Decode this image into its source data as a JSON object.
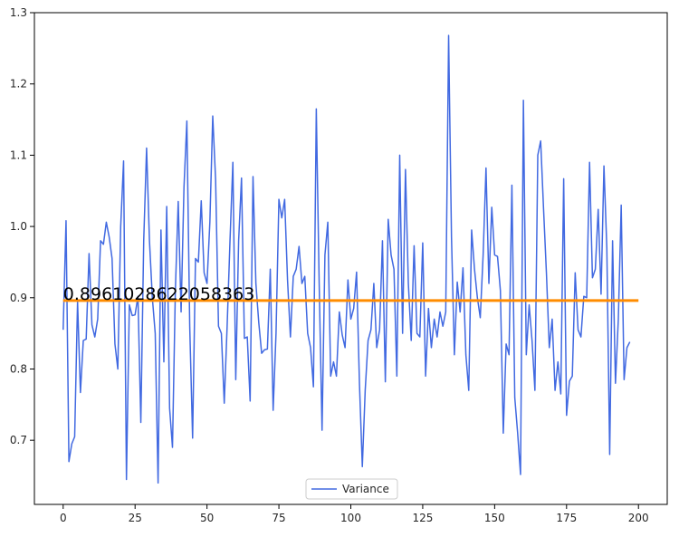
{
  "chart_data": {
    "type": "line",
    "title": "",
    "xlabel": "",
    "ylabel": "",
    "xlim": [
      -10,
      210
    ],
    "ylim": [
      0.61,
      1.3
    ],
    "xticks": [
      0,
      25,
      50,
      75,
      100,
      125,
      150,
      175,
      200
    ],
    "yticks": [
      0.7,
      0.8,
      0.9,
      1.0,
      1.1,
      1.2,
      1.3
    ],
    "xtick_labels": [
      "0",
      "25",
      "50",
      "75",
      "100",
      "125",
      "150",
      "175",
      "200"
    ],
    "ytick_labels": [
      "0.7",
      "0.8",
      "0.9",
      "1.0",
      "1.1",
      "1.2",
      "1.3"
    ],
    "grid": false,
    "legend": {
      "position": "lower center",
      "entries": [
        "Variance"
      ]
    },
    "series": [
      {
        "name": "Variance",
        "color": "#4169e1",
        "x_start": 0,
        "x_step": 1,
        "values": [
          0.855,
          1.008,
          0.67,
          0.695,
          0.705,
          0.895,
          0.767,
          0.84,
          0.842,
          0.962,
          0.862,
          0.845,
          0.87,
          0.98,
          0.975,
          1.006,
          0.985,
          0.955,
          0.835,
          0.8,
          1.0,
          1.092,
          0.645,
          0.89,
          0.875,
          0.876,
          0.902,
          0.725,
          0.98,
          1.11,
          0.98,
          0.9,
          0.85,
          0.64,
          0.995,
          0.81,
          1.028,
          0.745,
          0.69,
          0.91,
          1.035,
          0.88,
          1.055,
          1.148,
          0.86,
          0.703,
          0.955,
          0.95,
          1.036,
          0.935,
          0.92,
          1.006,
          1.155,
          1.065,
          0.86,
          0.85,
          0.752,
          0.86,
          0.98,
          1.09,
          0.785,
          0.98,
          1.068,
          0.843,
          0.845,
          0.755,
          1.07,
          0.92,
          0.865,
          0.822,
          0.827,
          0.828,
          0.94,
          0.742,
          0.85,
          1.038,
          1.012,
          1.038,
          0.925,
          0.845,
          0.93,
          0.94,
          0.972,
          0.92,
          0.93,
          0.85,
          0.83,
          0.775,
          1.165,
          0.92,
          0.714,
          0.96,
          1.006,
          0.79,
          0.81,
          0.79,
          0.88,
          0.848,
          0.83,
          0.925,
          0.87,
          0.885,
          0.936,
          0.78,
          0.663,
          0.77,
          0.84,
          0.855,
          0.92,
          0.83,
          0.855,
          0.98,
          0.782,
          1.01,
          0.96,
          0.94,
          0.79,
          1.1,
          0.85,
          1.08,
          0.92,
          0.84,
          0.973,
          0.85,
          0.845,
          0.977,
          0.79,
          0.885,
          0.83,
          0.87,
          0.845,
          0.88,
          0.86,
          0.88,
          1.268,
          0.985,
          0.82,
          0.922,
          0.88,
          0.942,
          0.82,
          0.77,
          0.995,
          0.94,
          0.9,
          0.872,
          0.96,
          1.082,
          0.92,
          1.027,
          0.96,
          0.958,
          0.91,
          0.71,
          0.835,
          0.82,
          1.058,
          0.76,
          0.71,
          0.652,
          1.177,
          0.82,
          0.89,
          0.84,
          0.77,
          1.1,
          1.12,
          1.025,
          0.935,
          0.83,
          0.87,
          0.77,
          0.81,
          0.765,
          1.067,
          0.735,
          0.783,
          0.79,
          0.935,
          0.855,
          0.845,
          0.902,
          0.9,
          1.09,
          0.928,
          0.94,
          1.024,
          0.905,
          1.085,
          0.97,
          0.68,
          0.98,
          0.78,
          0.87,
          1.03,
          0.785,
          0.83,
          0.838
        ]
      }
    ],
    "mean_line": {
      "value": 0.8961028622058363,
      "label": "0.8961028622058363",
      "color": "#ff8c00",
      "x_range": [
        0,
        200
      ]
    }
  }
}
